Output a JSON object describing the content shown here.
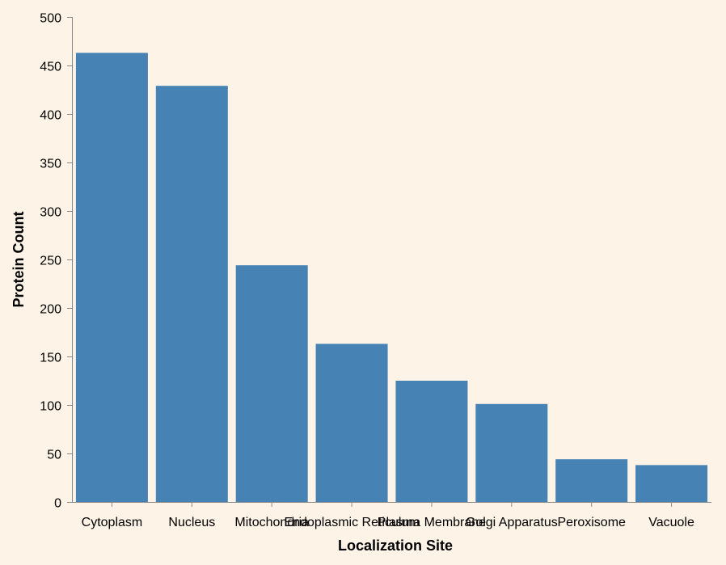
{
  "chart_data": {
    "type": "bar",
    "title": "",
    "xlabel": "Localization Site",
    "ylabel": "Protein Count",
    "categories": [
      "Cytoplasm",
      "Nucleus",
      "Mitochondria",
      "Endoplasmic Reticulum",
      "Plasma Membrane",
      "Golgi Apparatus",
      "Peroxisome",
      "Vacuole"
    ],
    "values": [
      463,
      429,
      244,
      163,
      125,
      101,
      44,
      38
    ],
    "ylim": [
      0,
      500
    ],
    "yticks": [
      0,
      50,
      100,
      150,
      200,
      250,
      300,
      350,
      400,
      450,
      500
    ],
    "grid": false,
    "legend": "none",
    "bar_color": "#4682b4",
    "background_color": "#fdf3e6"
  }
}
